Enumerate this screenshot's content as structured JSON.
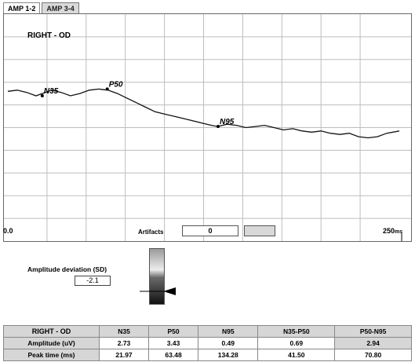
{
  "tabs": [
    {
      "label": "AMP 1-2",
      "active": true
    },
    {
      "label": "AMP 3-4",
      "active": false
    }
  ],
  "plot": {
    "eye_label": "RIGHT - OD",
    "x_min_label": "0.0",
    "x_max_label": "250",
    "x_unit": "ms",
    "x_range": [
      0,
      250
    ],
    "y_range": [
      -1,
      1
    ],
    "grid": true,
    "grid_columns": 10,
    "grid_rows": 10,
    "waveform": [
      [
        0,
        0.32
      ],
      [
        6,
        0.33
      ],
      [
        12,
        0.31
      ],
      [
        18,
        0.28
      ],
      [
        22,
        0.3
      ],
      [
        28,
        0.33
      ],
      [
        34,
        0.31
      ],
      [
        40,
        0.28
      ],
      [
        46,
        0.3
      ],
      [
        52,
        0.33
      ],
      [
        58,
        0.34
      ],
      [
        64,
        0.33
      ],
      [
        70,
        0.3
      ],
      [
        76,
        0.26
      ],
      [
        82,
        0.22
      ],
      [
        88,
        0.18
      ],
      [
        94,
        0.14
      ],
      [
        100,
        0.12
      ],
      [
        106,
        0.1
      ],
      [
        112,
        0.08
      ],
      [
        118,
        0.06
      ],
      [
        124,
        0.04
      ],
      [
        130,
        0.02
      ],
      [
        134,
        0.01
      ],
      [
        140,
        0.03
      ],
      [
        146,
        0.02
      ],
      [
        152,
        0.0
      ],
      [
        158,
        0.01
      ],
      [
        164,
        0.02
      ],
      [
        170,
        0.0
      ],
      [
        176,
        -0.02
      ],
      [
        182,
        -0.01
      ],
      [
        188,
        -0.03
      ],
      [
        194,
        -0.04
      ],
      [
        200,
        -0.03
      ],
      [
        206,
        -0.05
      ],
      [
        212,
        -0.06
      ],
      [
        218,
        -0.05
      ],
      [
        224,
        -0.08
      ],
      [
        230,
        -0.09
      ],
      [
        236,
        -0.08
      ],
      [
        242,
        -0.05
      ],
      [
        250,
        -0.03
      ]
    ],
    "markers": [
      {
        "name": "N35",
        "x": 21.97,
        "y": 0.28
      },
      {
        "name": "P50",
        "x": 63.48,
        "y": 0.34
      },
      {
        "name": "N95",
        "x": 134.28,
        "y": 0.01
      }
    ]
  },
  "artifacts": {
    "label": "Artifacts",
    "value": "0"
  },
  "amplitude_deviation": {
    "label": "Amplitude deviation (SD)",
    "value": "-2.1"
  },
  "table": {
    "corner": "RIGHT - OD",
    "columns": [
      "N35",
      "P50",
      "N95",
      "N35-P50",
      "P50-N95"
    ],
    "rows": [
      {
        "label": "Amplitude (uV)",
        "values": [
          "2.73",
          "3.43",
          "0.49",
          "0.69",
          "2.94"
        ]
      },
      {
        "label": "Peak time (ms)",
        "values": [
          "21.97",
          "63.48",
          "134.28",
          "41.50",
          "70.80"
        ]
      }
    ]
  }
}
